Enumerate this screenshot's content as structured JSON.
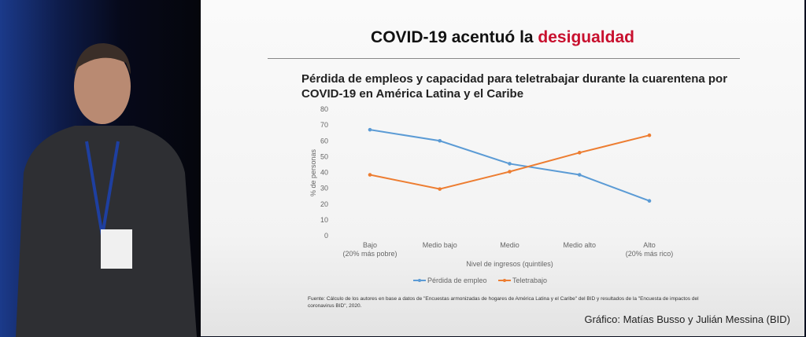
{
  "slide": {
    "title_prefix": "COVID-19 acentuó la ",
    "title_highlight": "desigualdad",
    "highlight_color": "#c8102e",
    "source": "Fuente: Cálculo de los autores en base a datos de \"Encuestas armonizadas de hogares de América Latina y el Caribe\" del BID y resultados de la \"Encuesta de impactos del coronavirus BID\", 2020.",
    "credit": "Gráfico: Matías Busso y Julián Messina (BID)"
  },
  "chart_data": {
    "type": "line",
    "title": "Pérdida de empleos y capacidad para teletrabajar durante la cuarentena por COVID-19 en América Latina y el Caribe",
    "xlabel": "Nivel de ingresos (quintiles)",
    "ylabel": "% de personas",
    "categories": [
      [
        "Bajo",
        "(20% más pobre)"
      ],
      [
        "Medio bajo",
        ""
      ],
      [
        "Medio",
        ""
      ],
      [
        "Medio alto",
        ""
      ],
      [
        "Alto",
        "(20% más rico)"
      ]
    ],
    "ylim": [
      0,
      80
    ],
    "yticks": [
      0,
      10,
      20,
      30,
      40,
      50,
      60,
      70,
      80
    ],
    "grid": false,
    "legend": "bottom",
    "series": [
      {
        "name": "Pérdida de empleo",
        "color": "#5b9bd5",
        "values": [
          67,
          60,
          45.5,
          38.5,
          22
        ]
      },
      {
        "name": "Teletrabajo",
        "color": "#ed7d31",
        "values": [
          38.5,
          29.5,
          40.5,
          52.5,
          63.5
        ]
      }
    ]
  }
}
